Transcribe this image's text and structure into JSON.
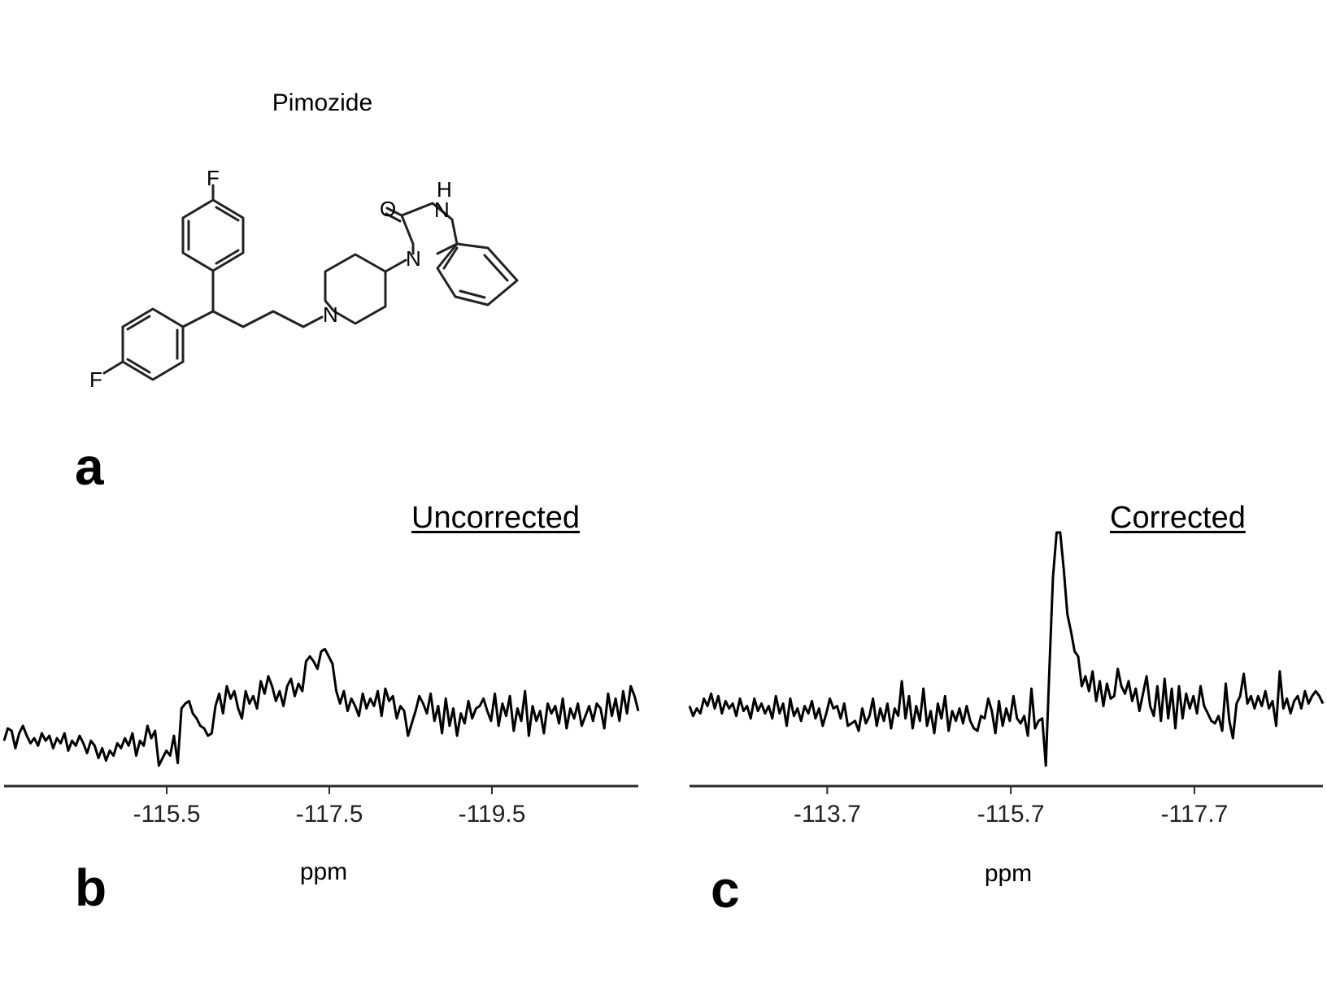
{
  "figure": {
    "compound_name": "Pimozide",
    "panel_labels": [
      "a",
      "b",
      "c"
    ],
    "molecule_atom_labels": [
      "F",
      "F",
      "N",
      "N",
      "N",
      "O",
      "H"
    ]
  },
  "chart_data": [
    {
      "type": "line",
      "panel": "b",
      "title": "Uncorrected",
      "xlabel": "ppm",
      "ylabel": "",
      "x_reversed": true,
      "xlim": [
        -113.5,
        -121.3
      ],
      "ylim": [
        0,
        1
      ],
      "xticks": [
        -115.5,
        -117.5,
        -119.5
      ],
      "tick_labels": [
        "-115.5",
        "-117.5",
        "-119.5"
      ],
      "grid": false,
      "series": [
        {
          "x_start": -113.5,
          "x_end": -121.3,
          "values": [
            0.16,
            0.21,
            0.2,
            0.13,
            0.19,
            0.22,
            0.18,
            0.15,
            0.17,
            0.14,
            0.19,
            0.16,
            0.18,
            0.13,
            0.17,
            0.15,
            0.19,
            0.12,
            0.16,
            0.14,
            0.18,
            0.15,
            0.11,
            0.16,
            0.14,
            0.09,
            0.13,
            0.08,
            0.12,
            0.1,
            0.15,
            0.13,
            0.17,
            0.14,
            0.19,
            0.1,
            0.16,
            0.14,
            0.22,
            0.17,
            0.2,
            0.06,
            0.09,
            0.12,
            0.1,
            0.18,
            0.07,
            0.29,
            0.31,
            0.32,
            0.27,
            0.25,
            0.22,
            0.21,
            0.18,
            0.19,
            0.3,
            0.35,
            0.27,
            0.38,
            0.33,
            0.36,
            0.29,
            0.25,
            0.36,
            0.31,
            0.34,
            0.29,
            0.4,
            0.35,
            0.42,
            0.38,
            0.32,
            0.36,
            0.3,
            0.38,
            0.41,
            0.34,
            0.39,
            0.36,
            0.48,
            0.5,
            0.48,
            0.45,
            0.52,
            0.53,
            0.5,
            0.47,
            0.36,
            0.31,
            0.36,
            0.28,
            0.33,
            0.3,
            0.26,
            0.35,
            0.29,
            0.33,
            0.3,
            0.36,
            0.26,
            0.37,
            0.32,
            0.34,
            0.25,
            0.3,
            0.28,
            0.18,
            0.23,
            0.28,
            0.34,
            0.31,
            0.27,
            0.35,
            0.24,
            0.3,
            0.19,
            0.33,
            0.22,
            0.29,
            0.18,
            0.27,
            0.23,
            0.32,
            0.25,
            0.29,
            0.3,
            0.33,
            0.28,
            0.24,
            0.35,
            0.22,
            0.31,
            0.26,
            0.34,
            0.2,
            0.29,
            0.24,
            0.36,
            0.18,
            0.3,
            0.24,
            0.28,
            0.19,
            0.31,
            0.27,
            0.3,
            0.23,
            0.33,
            0.21,
            0.29,
            0.25,
            0.31,
            0.22,
            0.26,
            0.3,
            0.24,
            0.31,
            0.29,
            0.21,
            0.35,
            0.26,
            0.33,
            0.24,
            0.36,
            0.27,
            0.38,
            0.34,
            0.28
          ]
        }
      ]
    },
    {
      "type": "line",
      "panel": "c",
      "title": "Corrected",
      "xlabel": "ppm",
      "ylabel": "",
      "x_reversed": true,
      "xlim": [
        -112.2,
        -119.1
      ],
      "ylim": [
        0,
        1
      ],
      "xticks": [
        -113.7,
        -115.7,
        -117.7
      ],
      "tick_labels": [
        "-113.7",
        "-115.7",
        "-117.7"
      ],
      "grid": false,
      "series": [
        {
          "x_start": -112.2,
          "x_end": -119.1,
          "values": [
            0.3,
            0.26,
            0.29,
            0.27,
            0.33,
            0.3,
            0.35,
            0.29,
            0.34,
            0.27,
            0.32,
            0.29,
            0.31,
            0.26,
            0.33,
            0.28,
            0.3,
            0.25,
            0.33,
            0.28,
            0.31,
            0.27,
            0.3,
            0.25,
            0.34,
            0.27,
            0.31,
            0.22,
            0.33,
            0.26,
            0.29,
            0.24,
            0.3,
            0.27,
            0.32,
            0.25,
            0.29,
            0.22,
            0.27,
            0.33,
            0.29,
            0.3,
            0.25,
            0.31,
            0.22,
            0.23,
            0.24,
            0.2,
            0.29,
            0.23,
            0.26,
            0.33,
            0.22,
            0.29,
            0.24,
            0.31,
            0.21,
            0.29,
            0.26,
            0.4,
            0.25,
            0.34,
            0.21,
            0.3,
            0.24,
            0.37,
            0.22,
            0.28,
            0.19,
            0.31,
            0.25,
            0.34,
            0.2,
            0.28,
            0.24,
            0.29,
            0.23,
            0.3,
            0.24,
            0.21,
            0.2,
            0.26,
            0.25,
            0.33,
            0.28,
            0.19,
            0.32,
            0.22,
            0.29,
            0.24,
            0.34,
            0.25,
            0.23,
            0.26,
            0.18,
            0.37,
            0.21,
            0.24,
            0.25,
            0.06,
            0.45,
            0.82,
            1.0,
            1.0,
            0.85,
            0.67,
            0.6,
            0.52,
            0.5,
            0.38,
            0.42,
            0.36,
            0.44,
            0.32,
            0.4,
            0.3,
            0.39,
            0.33,
            0.34,
            0.45,
            0.38,
            0.35,
            0.4,
            0.32,
            0.37,
            0.28,
            0.35,
            0.42,
            0.3,
            0.26,
            0.38,
            0.24,
            0.41,
            0.25,
            0.37,
            0.21,
            0.38,
            0.25,
            0.35,
            0.29,
            0.34,
            0.27,
            0.38,
            0.3,
            0.27,
            0.24,
            0.23,
            0.26,
            0.2,
            0.39,
            0.24,
            0.17,
            0.31,
            0.34,
            0.43,
            0.31,
            0.34,
            0.29,
            0.34,
            0.3,
            0.36,
            0.29,
            0.32,
            0.22,
            0.44,
            0.29,
            0.33,
            0.27,
            0.32,
            0.34,
            0.29,
            0.36,
            0.31,
            0.34,
            0.36,
            0.34,
            0.31
          ]
        }
      ]
    }
  ]
}
